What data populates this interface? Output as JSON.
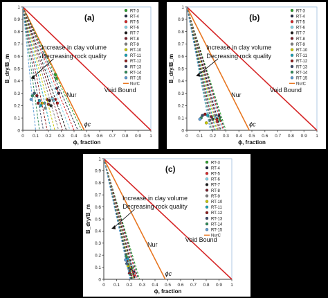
{
  "chart_data": [
    {
      "type": "line",
      "panel_label": "(a)",
      "xlabel": "ϕ, fraction",
      "ylabel": "B_dry/B_m",
      "xlim": [
        0,
        1
      ],
      "ylim": [
        0,
        1
      ],
      "xticks": [
        "0",
        "0.1",
        "0.2",
        "0.3",
        "0.4",
        "0.5",
        "0.6",
        "0.7",
        "0.8",
        "0.9",
        "1"
      ],
      "yticks": [
        "0",
        "0.1",
        "0.2",
        "0.3",
        "0.4",
        "0.5",
        "0.6",
        "0.7",
        "0.8",
        "0.9",
        "1"
      ],
      "grid": false,
      "legend_position": "right",
      "annotations": {
        "trend": [
          "Increase in clay volume",
          "Decreasing rock quality"
        ],
        "nur": "Nur",
        "void": "Void Bound",
        "phic": "ϕc"
      },
      "bounds": [
        {
          "name": "NurC",
          "color": "#e87722",
          "x": [
            0,
            0.48
          ],
          "y": [
            1,
            0
          ]
        },
        {
          "name": "Void Bound",
          "color": "#d62728",
          "x": [
            0,
            1
          ],
          "y": [
            1,
            0
          ]
        }
      ],
      "series": [
        {
          "name": "RT-3",
          "color": "#2ca02c",
          "phi_c": 0.46,
          "points": [
            [
              0.255,
              0.45
            ],
            [
              0.262,
              0.42
            ]
          ]
        },
        {
          "name": "RT-4",
          "color": "#1f2a44",
          "phi_c": 0.43,
          "points": [
            [
              0.265,
              0.34
            ],
            [
              0.28,
              0.3
            ]
          ]
        },
        {
          "name": "RT-5",
          "color": "#d62728",
          "phi_c": 0.4,
          "points": [
            [
              0.255,
              0.25
            ],
            [
              0.27,
              0.22
            ]
          ]
        },
        {
          "name": "RT-6",
          "color": "#7fd3e8",
          "phi_c": 0.37,
          "points": [
            [
              0.23,
              0.26
            ],
            [
              0.24,
              0.24
            ]
          ]
        },
        {
          "name": "RT-7",
          "color": "#1b1b1b",
          "phi_c": 0.34,
          "points": [
            [
              0.21,
              0.24
            ],
            [
              0.22,
              0.2
            ]
          ]
        },
        {
          "name": "RT-8",
          "color": "#7a1f2b",
          "phi_c": 0.31,
          "points": [
            [
              0.19,
              0.25
            ],
            [
              0.2,
              0.21
            ]
          ]
        },
        {
          "name": "RT-9",
          "color": "#7f7f7f",
          "phi_c": 0.28,
          "points": [
            [
              0.17,
              0.22
            ],
            [
              0.175,
              0.18
            ]
          ]
        },
        {
          "name": "RT-10",
          "color": "#c7c700",
          "phi_c": 0.25,
          "points": [
            [
              0.15,
              0.22
            ]
          ]
        },
        {
          "name": "RT-11",
          "color": "#17a2b8",
          "phi_c": 0.22,
          "points": [
            [
              0.13,
              0.24
            ],
            [
              0.14,
              0.2
            ]
          ]
        },
        {
          "name": "RT-12",
          "color": "#8b1a1a",
          "phi_c": 0.19,
          "points": [
            [
              0.11,
              0.28
            ],
            [
              0.12,
              0.22
            ]
          ]
        },
        {
          "name": "RT-13",
          "color": "#3b4a6b",
          "phi_c": 0.16,
          "points": [
            [
              0.09,
              0.3
            ]
          ]
        },
        {
          "name": "RT-14",
          "color": "#2e8b57",
          "phi_c": 0.13,
          "points": [
            [
              0.075,
              0.28
            ]
          ]
        },
        {
          "name": "RT-15",
          "color": "#5b9bd5",
          "phi_c": 0.1,
          "points": [
            [
              0.065,
              0.25
            ]
          ]
        }
      ]
    },
    {
      "type": "line",
      "panel_label": "(b)",
      "xlabel": "ϕ, fraction",
      "ylabel": "B_dry/B_m",
      "xlim": [
        0,
        1
      ],
      "ylim": [
        0,
        1
      ],
      "xticks": [
        "0",
        "0.1",
        "0.2",
        "0.3",
        "0.4",
        "0.5",
        "0.6",
        "0.7",
        "0.8",
        "0.9",
        "1"
      ],
      "yticks": [
        "0",
        "0.1",
        "0.2",
        "0.3",
        "0.4",
        "0.5",
        "0.6",
        "0.7",
        "0.8",
        "0.9",
        "1"
      ],
      "grid": false,
      "legend_position": "right",
      "annotations": {
        "trend": [
          "Increase in clay volume",
          "Decreasing rock quality"
        ],
        "nur": "Nur",
        "void": "Void Bound",
        "phic": "ϕc"
      },
      "bounds": [
        {
          "name": "NurC",
          "color": "#e87722",
          "x": [
            0,
            0.48
          ],
          "y": [
            1,
            0
          ]
        },
        {
          "name": "Void Bound",
          "color": "#d62728",
          "x": [
            0,
            1
          ],
          "y": [
            1,
            0
          ]
        }
      ],
      "series": [
        {
          "name": "RT-3",
          "color": "#2ca02c",
          "phi_c": 0.3,
          "points": [
            [
              0.25,
              0.1
            ],
            [
              0.255,
              0.08
            ]
          ]
        },
        {
          "name": "RT-4",
          "color": "#1f2a44",
          "phi_c": 0.29,
          "points": [
            [
              0.245,
              0.12
            ]
          ]
        },
        {
          "name": "RT-5",
          "color": "#d62728",
          "phi_c": 0.28,
          "points": [
            [
              0.23,
              0.09
            ],
            [
              0.235,
              0.07
            ]
          ]
        },
        {
          "name": "RT-6",
          "color": "#7fd3e8",
          "phi_c": 0.27,
          "points": [
            [
              0.215,
              0.12
            ],
            [
              0.22,
              0.1
            ]
          ]
        },
        {
          "name": "RT-7",
          "color": "#1b1b1b",
          "phi_c": 0.26,
          "points": [
            [
              0.2,
              0.09
            ]
          ]
        },
        {
          "name": "RT-8",
          "color": "#7a1f2b",
          "phi_c": 0.25,
          "points": [
            [
              0.19,
              0.11
            ]
          ]
        },
        {
          "name": "RT-9",
          "color": "#7f7f7f",
          "phi_c": 0.24,
          "points": [
            [
              0.175,
              0.08
            ]
          ]
        },
        {
          "name": "RT-10",
          "color": "#c7c700",
          "phi_c": 0.23,
          "points": [
            [
              0.15,
              0.06
            ]
          ]
        },
        {
          "name": "RT-11",
          "color": "#17a2b8",
          "phi_c": 0.22,
          "points": [
            [
              0.16,
              0.12
            ]
          ]
        },
        {
          "name": "RT-12",
          "color": "#8b1a1a",
          "phi_c": 0.21,
          "points": [
            [
              0.14,
              0.13
            ]
          ]
        },
        {
          "name": "RT-13",
          "color": "#3b4a6b",
          "phi_c": 0.2,
          "points": [
            [
              0.12,
              0.12
            ]
          ]
        },
        {
          "name": "RT-14",
          "color": "#2e8b57",
          "phi_c": 0.19,
          "points": [
            [
              0.11,
              0.1
            ]
          ]
        },
        {
          "name": "RT-15",
          "color": "#5b9bd5",
          "phi_c": 0.18,
          "points": [
            [
              0.1,
              0.09
            ]
          ]
        }
      ]
    },
    {
      "type": "line",
      "panel_label": "(c)",
      "xlabel": "ϕ, fraction",
      "ylabel": "B_dry/B_m",
      "xlim": [
        0,
        1
      ],
      "ylim": [
        0,
        1
      ],
      "xticks": [
        "0",
        "0.1",
        "0.2",
        "0.3",
        "0.4",
        "0.5",
        "0.6",
        "0.7",
        "0.8",
        "0.9",
        "1"
      ],
      "yticks": [
        "0",
        "0.1",
        "0.2",
        "0.3",
        "0.4",
        "0.5",
        "0.6",
        "0.7",
        "0.8",
        "0.9",
        "1"
      ],
      "grid": false,
      "legend_position": "right",
      "annotations": {
        "trend": [
          "Increase in clay volume",
          "Decreasing rock quality"
        ],
        "nur": "Nur",
        "void": "Void Bound",
        "phic": "ϕc"
      },
      "bounds": [
        {
          "name": "NurC",
          "color": "#e87722",
          "x": [
            0,
            0.48
          ],
          "y": [
            1,
            0
          ]
        },
        {
          "name": "Void Bound",
          "color": "#d62728",
          "x": [
            0,
            1
          ],
          "y": [
            1,
            0
          ]
        }
      ],
      "series": [
        {
          "name": "RT-3",
          "color": "#2ca02c",
          "phi_c": 0.28,
          "points": [
            [
              0.225,
              0.1
            ]
          ]
        },
        {
          "name": "RT-4",
          "color": "#1f2a44",
          "phi_c": 0.27,
          "points": [
            [
              0.235,
              0.06
            ]
          ]
        },
        {
          "name": "RT-5",
          "color": "#d62728",
          "phi_c": 0.26,
          "points": [
            [
              0.24,
              0.03
            ],
            [
              0.23,
              0.05
            ]
          ]
        },
        {
          "name": "RT-6",
          "color": "#7fd3e8",
          "phi_c": 0.25,
          "points": [
            [
              0.2,
              0.15
            ],
            [
              0.205,
              0.12
            ]
          ]
        },
        {
          "name": "RT-7",
          "color": "#1b1b1b",
          "phi_c": 0.245,
          "points": [
            [
              0.21,
              0.08
            ]
          ]
        },
        {
          "name": "RT-8",
          "color": "#7a1f2b",
          "phi_c": 0.24,
          "points": [
            [
              0.215,
              0.04
            ]
          ]
        },
        {
          "name": "RT-9",
          "color": "#7f7f7f",
          "phi_c": 0.235,
          "points": [
            [
              0.195,
              0.09
            ]
          ]
        },
        {
          "name": "RT-10",
          "color": "#c7c700",
          "phi_c": 0.23,
          "points": [
            [
              0.19,
              0.11
            ]
          ]
        },
        {
          "name": "RT-11",
          "color": "#17a2b8",
          "phi_c": 0.225,
          "points": [
            [
              0.185,
              0.17
            ]
          ]
        },
        {
          "name": "RT-12",
          "color": "#8b1a1a",
          "phi_c": 0.22,
          "points": [
            [
              0.2,
              0.05
            ]
          ]
        },
        {
          "name": "RT-13",
          "color": "#3b4a6b",
          "phi_c": 0.215,
          "points": [
            [
              0.18,
              0.13
            ]
          ]
        },
        {
          "name": "RT-14",
          "color": "#2e8b57",
          "phi_c": 0.21,
          "points": [
            [
              0.175,
              0.19
            ]
          ]
        },
        {
          "name": "RT-15",
          "color": "#5b9bd5",
          "phi_c": 0.205,
          "points": [
            [
              0.17,
              0.16
            ]
          ]
        }
      ]
    }
  ]
}
